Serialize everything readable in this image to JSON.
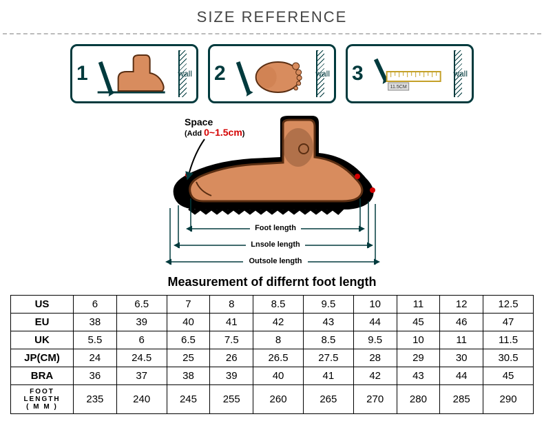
{
  "title": "SIZE REFERENCE",
  "steps": {
    "s1": {
      "num": "1",
      "wall": "wall"
    },
    "s2": {
      "num": "2",
      "wall": "wall"
    },
    "s3": {
      "num": "3",
      "wall": "wall",
      "tape": "11.5CM"
    }
  },
  "diagram": {
    "space_label": "Space",
    "add_prefix": "(Add ",
    "add_value": "0~1.5cm",
    "add_suffix": ")",
    "foot_length": "Foot length",
    "insole_length": "Lnsole length",
    "outsole_length": "Outsole length",
    "colors": {
      "outline": "#000000",
      "sole": "#000000",
      "skin": "#d88c5e",
      "skin_dark": "#b06a40",
      "ankle_shadow": "#6b3f24",
      "space_dot": "#d40000",
      "arrow": "#003a3d"
    }
  },
  "caption": "Measurement of differnt foot length",
  "table": {
    "headers": [
      "US",
      "EU",
      "UK",
      "JP(CM)",
      "BRA",
      "FOOT LENGTH (MM)"
    ],
    "rows": [
      [
        "6",
        "6.5",
        "7",
        "8",
        "8.5",
        "9.5",
        "10",
        "11",
        "12",
        "12.5"
      ],
      [
        "38",
        "39",
        "40",
        "41",
        "42",
        "43",
        "44",
        "45",
        "46",
        "47"
      ],
      [
        "5.5",
        "6",
        "6.5",
        "7.5",
        "8",
        "8.5",
        "9.5",
        "10",
        "11",
        "11.5"
      ],
      [
        "24",
        "24.5",
        "25",
        "26",
        "26.5",
        "27.5",
        "28",
        "29",
        "30",
        "30.5"
      ],
      [
        "36",
        "37",
        "38",
        "39",
        "40",
        "41",
        "42",
        "43",
        "44",
        "45"
      ],
      [
        "235",
        "240",
        "245",
        "255",
        "260",
        "265",
        "270",
        "280",
        "285",
        "290"
      ]
    ]
  }
}
